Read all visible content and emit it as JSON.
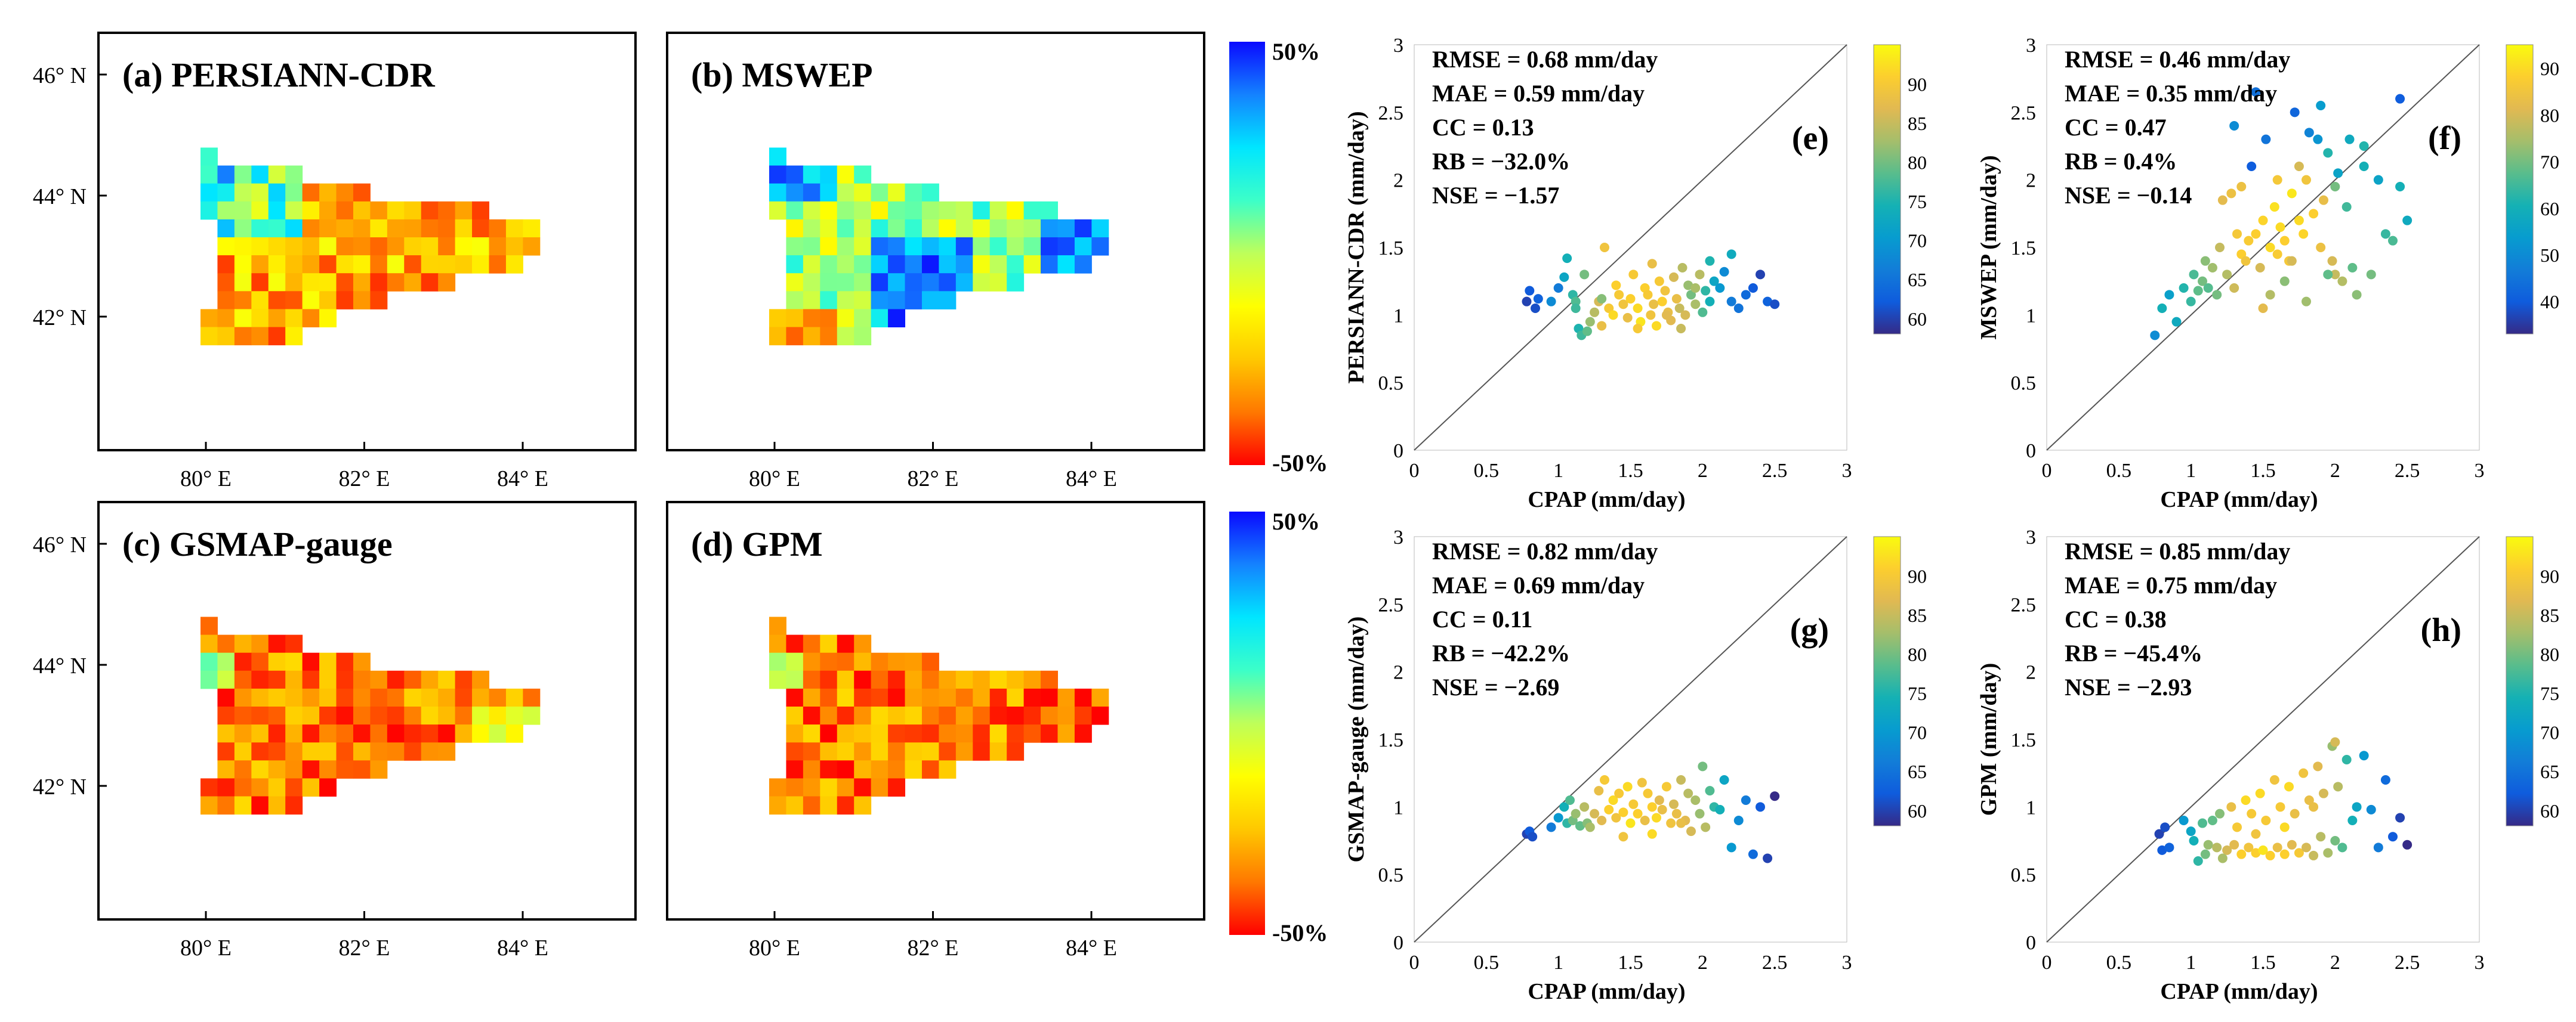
{
  "chart_data": [
    {
      "type": "heatmap",
      "panel": "a",
      "title": "(a) PERSIANN-CDR",
      "x_ticks": [
        "80° E",
        "82° E",
        "84° E"
      ],
      "y_ticks": [
        "46° N",
        "44° N",
        "42° N"
      ],
      "grid": [
        [
          "b00...........",
          "b10...........",
          "b20u0u5r5t5...",
          "b15u5u0r5r0r0r5r5......",
          "v2v2v2v2v2r5u0u0r5r0r0r5...",
          "...u5u5u5v0v0u5s2s0r5r0r0s0s0",
          "...s2s2s5s5s2s2s0r2r0r0r5s5t0",
          "...s2s5s5s5s2s2s0r0s0r5s0..",
          "...t0s5s2s5s0s0r0r0s0....",
          "...s5t0s5r5r0s0r2r0.......",
          "s0s0s2s0s2r0r5r2........",
          "r0r0r0r0r5r0............"
        ]
      ],
      "colorbar": {
        "max_label": "50%",
        "min_label": "-50%"
      }
    },
    {
      "type": "heatmap",
      "panel": "b",
      "title": "(b) MSWEP",
      "x_ticks": [
        "80° E",
        "82° E",
        "84° E"
      ],
      "y_ticks": [
        "46° N",
        "44° N",
        "42° N"
      ]
    },
    {
      "type": "heatmap",
      "panel": "c",
      "title": "(c) GSMAP-gauge",
      "x_ticks": [
        "80° E",
        "82° E",
        "84° E"
      ],
      "y_ticks": [
        "46° N",
        "44° N",
        "42° N"
      ]
    },
    {
      "type": "heatmap",
      "panel": "d",
      "title": "(d) GPM",
      "x_ticks": [
        "80° E",
        "82° E",
        "84° E"
      ],
      "y_ticks": [
        "46° N",
        "44° N",
        "42° N"
      ],
      "colorbar": {
        "max_label": "50%",
        "min_label": "-50%"
      }
    },
    {
      "type": "scatter",
      "panel": "e",
      "label": "(e)",
      "xlabel": "CPAP (mm/day)",
      "ylabel": "PERSIANN-CDR (mm/day)",
      "xlim": [
        0,
        3
      ],
      "ylim": [
        0,
        3
      ],
      "x_ticks": [
        "0",
        "0.5",
        "1",
        "1.5",
        "2",
        "2.5",
        "3"
      ],
      "y_ticks": [
        "0",
        "0.5",
        "1",
        "1.5",
        "2",
        "2.5",
        "3"
      ],
      "stats": [
        "RMSE = 0.68 mm/day",
        "MAE = 0.59 mm/day",
        "CC = 0.13",
        "RB = −32.0%",
        "NSE = −1.57"
      ],
      "colorbar": {
        "ticks": [
          "60",
          "65",
          "70",
          "75",
          "80",
          "85",
          "90"
        ],
        "range": [
          58,
          95
        ]
      },
      "x": [
        0.78,
        0.8,
        0.84,
        0.86,
        0.95,
        1.0,
        1.04,
        1.06,
        1.1,
        1.12,
        1.14,
        1.16,
        1.18,
        1.22,
        1.25,
        1.28,
        1.3,
        1.32,
        1.35,
        1.38,
        1.4,
        1.42,
        1.45,
        1.48,
        1.5,
        1.52,
        1.55,
        1.57,
        1.6,
        1.62,
        1.64,
        1.66,
        1.68,
        1.7,
        1.72,
        1.74,
        1.76,
        1.78,
        1.8,
        1.82,
        1.84,
        1.86,
        1.88,
        1.9,
        1.92,
        1.95,
        1.98,
        2.0,
        2.02,
        2.05,
        2.08,
        2.12,
        2.15,
        2.2,
        2.25,
        2.3,
        2.35,
        2.4,
        2.45,
        2.5,
        1.12,
        1.2,
        1.3,
        1.55,
        1.65,
        1.75,
        1.85,
        1.95,
        2.05,
        2.2
      ],
      "y": [
        1.1,
        1.18,
        1.05,
        1.12,
        1.1,
        1.2,
        1.28,
        1.42,
        1.15,
        1.1,
        0.9,
        0.85,
        1.3,
        0.95,
        1.02,
        1.1,
        0.92,
        1.5,
        1.05,
        1.0,
        1.22,
        1.15,
        1.08,
        0.98,
        1.12,
        1.3,
        1.05,
        0.95,
        1.2,
        1.15,
        1.0,
        1.08,
        0.92,
        1.25,
        1.1,
        1.18,
        1.02,
        0.96,
        1.28,
        1.12,
        1.05,
        1.35,
        1.0,
        1.22,
        1.15,
        1.08,
        1.3,
        1.02,
        1.18,
        1.1,
        1.25,
        1.2,
        1.32,
        1.1,
        1.05,
        1.15,
        1.2,
        1.3,
        1.1,
        1.08,
        1.05,
        0.88,
        1.12,
        0.9,
        1.38,
        1.0,
        0.9,
        1.2,
        1.4,
        1.45
      ],
      "c": [
        60,
        62,
        61,
        63,
        68,
        66,
        72,
        74,
        76,
        78,
        75,
        77,
        80,
        82,
        84,
        86,
        88,
        89,
        90,
        92,
        91,
        90,
        89,
        88,
        91,
        90,
        92,
        93,
        91,
        90,
        89,
        88,
        92,
        90,
        91,
        89,
        88,
        87,
        86,
        88,
        85,
        84,
        86,
        82,
        80,
        83,
        84,
        78,
        76,
        74,
        72,
        70,
        68,
        66,
        65,
        64,
        62,
        60,
        63,
        61,
        77,
        79,
        81,
        90,
        88,
        87,
        85,
        83,
        75,
        73
      ]
    },
    {
      "type": "scatter",
      "panel": "f",
      "label": "(f)",
      "xlabel": "CPAP (mm/day)",
      "ylabel": "MSWEP (mm/day)",
      "xlim": [
        0,
        3
      ],
      "ylim": [
        0,
        3
      ],
      "x_ticks": [
        "0",
        "0.5",
        "1",
        "1.5",
        "2",
        "2.5",
        "3"
      ],
      "y_ticks": [
        "0",
        "0.5",
        "1",
        "1.5",
        "2",
        "2.5",
        "3"
      ],
      "stats": [
        "RMSE = 0.46 mm/day",
        "MAE = 0.35 mm/day",
        "CC = 0.47",
        "RB = 0.4%",
        "NSE = −0.14"
      ],
      "colorbar": {
        "ticks": [
          "40",
          "50",
          "60",
          "70",
          "80",
          "90"
        ],
        "range": [
          33,
          95
        ]
      },
      "x": [
        0.75,
        0.8,
        0.85,
        0.9,
        0.95,
        1.0,
        1.02,
        1.05,
        1.08,
        1.1,
        1.12,
        1.15,
        1.18,
        1.2,
        1.22,
        1.25,
        1.28,
        1.3,
        1.32,
        1.35,
        1.38,
        1.4,
        1.42,
        1.45,
        1.48,
        1.5,
        1.52,
        1.55,
        1.58,
        1.6,
        1.62,
        1.65,
        1.68,
        1.7,
        1.72,
        1.75,
        1.78,
        1.8,
        1.82,
        1.85,
        1.88,
        1.9,
        1.92,
        1.95,
        1.98,
        2.0,
        2.02,
        2.05,
        2.08,
        2.1,
        2.12,
        2.15,
        2.2,
        2.25,
        2.3,
        2.35,
        2.4,
        2.45,
        2.5,
        1.3,
        1.45,
        1.6,
        1.75,
        1.9,
        2.0,
        1.55,
        1.65,
        1.8,
        1.95,
        2.2,
        2.45,
        1.35,
        1.5,
        1.7
      ],
      "y": [
        0.85,
        1.05,
        1.15,
        0.95,
        1.2,
        1.1,
        1.3,
        1.18,
        1.25,
        1.4,
        1.2,
        1.35,
        1.15,
        1.5,
        1.85,
        1.3,
        1.9,
        1.2,
        1.6,
        1.45,
        1.4,
        1.55,
        2.1,
        1.6,
        1.35,
        1.7,
        2.3,
        1.5,
        1.8,
        1.45,
        1.65,
        1.55,
        1.4,
        1.9,
        2.5,
        1.7,
        1.6,
        2.0,
        2.35,
        1.75,
        2.3,
        1.5,
        1.85,
        2.2,
        1.4,
        1.95,
        2.05,
        1.25,
        1.8,
        2.3,
        1.35,
        1.15,
        2.1,
        1.3,
        2.0,
        1.6,
        1.55,
        2.6,
        1.7,
        2.4,
        2.65,
        2.0,
        2.1,
        2.55,
        1.3,
        1.15,
        1.25,
        1.1,
        1.3,
        2.25,
        1.95,
        1.95,
        1.05,
        1.4
      ],
      "c": [
        50,
        60,
        55,
        58,
        62,
        64,
        66,
        68,
        70,
        72,
        67,
        74,
        70,
        78,
        82,
        76,
        84,
        79,
        86,
        88,
        85,
        87,
        40,
        88,
        80,
        89,
        45,
        90,
        91,
        87,
        90,
        88,
        86,
        92,
        42,
        90,
        89,
        85,
        48,
        88,
        52,
        84,
        83,
        62,
        80,
        70,
        56,
        76,
        65,
        58,
        68,
        72,
        60,
        70,
        56,
        64,
        66,
        40,
        58,
        50,
        44,
        86,
        80,
        54,
        78,
        76,
        72,
        74,
        68,
        62,
        60,
        84,
        82,
        80
      ]
    },
    {
      "type": "scatter",
      "panel": "g",
      "label": "(g)",
      "xlabel": "CPAP (mm/day)",
      "ylabel": "GSMAP-gauge (mm/day)",
      "xlim": [
        0,
        3
      ],
      "ylim": [
        0,
        3
      ],
      "x_ticks": [
        "0",
        "0.5",
        "1",
        "1.5",
        "2",
        "2.5",
        "3"
      ],
      "y_ticks": [
        "0",
        "0.5",
        "1",
        "1.5",
        "2",
        "2.5",
        "3"
      ],
      "stats": [
        "RMSE = 0.82 mm/day",
        "MAE = 0.69 mm/day",
        "CC = 0.11",
        "RB = −42.2%",
        "NSE = −2.69"
      ],
      "colorbar": {
        "ticks": [
          "60",
          "65",
          "70",
          "75",
          "80",
          "85",
          "90"
        ],
        "range": [
          58,
          95
        ]
      },
      "x": [
        0.78,
        0.8,
        0.82,
        0.95,
        1.0,
        1.04,
        1.06,
        1.08,
        1.1,
        1.12,
        1.15,
        1.18,
        1.2,
        1.25,
        1.28,
        1.3,
        1.32,
        1.35,
        1.38,
        1.4,
        1.42,
        1.45,
        1.48,
        1.5,
        1.52,
        1.55,
        1.58,
        1.6,
        1.62,
        1.65,
        1.68,
        1.7,
        1.72,
        1.75,
        1.78,
        1.8,
        1.82,
        1.85,
        1.88,
        1.9,
        1.92,
        1.95,
        1.98,
        2.0,
        2.02,
        2.05,
        2.08,
        2.12,
        2.15,
        2.2,
        2.25,
        2.3,
        2.35,
        2.4,
        2.45,
        2.5,
        1.22,
        1.45,
        1.65,
        1.85
      ],
      "y": [
        0.8,
        0.82,
        0.78,
        0.85,
        0.92,
        1.0,
        0.88,
        1.05,
        0.9,
        0.95,
        0.86,
        1.0,
        0.88,
        0.95,
        1.12,
        0.9,
        1.2,
        0.98,
        1.05,
        0.92,
        1.1,
        0.96,
        1.15,
        0.88,
        1.02,
        0.95,
        1.18,
        0.9,
        1.1,
        1.0,
        0.92,
        1.05,
        0.98,
        1.15,
        0.88,
        1.02,
        0.95,
        1.2,
        0.9,
        1.1,
        0.82,
        1.05,
        0.95,
        1.3,
        0.85,
        1.12,
        1.0,
        0.98,
        1.2,
        0.7,
        0.9,
        1.05,
        0.65,
        1.0,
        0.62,
        1.08,
        0.85,
        0.78,
        0.8,
        0.88
      ],
      "c": [
        60,
        62,
        61,
        66,
        70,
        74,
        76,
        78,
        80,
        82,
        79,
        84,
        81,
        86,
        88,
        87,
        90,
        91,
        92,
        89,
        90,
        91,
        92,
        93,
        90,
        91,
        89,
        88,
        90,
        91,
        92,
        87,
        88,
        90,
        89,
        86,
        88,
        85,
        87,
        84,
        86,
        83,
        82,
        80,
        84,
        78,
        76,
        74,
        72,
        70,
        68,
        66,
        64,
        62,
        60,
        58,
        83,
        89,
        92,
        88
      ]
    },
    {
      "type": "scatter",
      "panel": "h",
      "label": "(h)",
      "xlabel": "CPAP (mm/day)",
      "ylabel": "GPM (mm/day)",
      "xlim": [
        0,
        3
      ],
      "ylim": [
        0,
        3
      ],
      "x_ticks": [
        "0",
        "0.5",
        "1",
        "1.5",
        "2",
        "2.5",
        "3"
      ],
      "y_ticks": [
        "0",
        "0.5",
        "1",
        "1.5",
        "2",
        "2.5",
        "3"
      ],
      "stats": [
        "RMSE = 0.85 mm/day",
        "MAE = 0.75 mm/day",
        "CC = 0.38",
        "RB = −45.4%",
        "NSE = −2.93"
      ],
      "colorbar": {
        "ticks": [
          "60",
          "65",
          "70",
          "75",
          "80",
          "85",
          "90"
        ],
        "range": [
          58,
          95
        ]
      },
      "x": [
        0.78,
        0.8,
        0.82,
        0.85,
        0.95,
        1.0,
        1.02,
        1.05,
        1.08,
        1.1,
        1.12,
        1.15,
        1.18,
        1.2,
        1.25,
        1.28,
        1.3,
        1.32,
        1.35,
        1.38,
        1.4,
        1.42,
        1.45,
        1.48,
        1.5,
        1.52,
        1.55,
        1.58,
        1.6,
        1.62,
        1.65,
        1.68,
        1.7,
        1.72,
        1.75,
        1.78,
        1.8,
        1.82,
        1.85,
        1.88,
        1.9,
        1.92,
        1.95,
        1.98,
        2.0,
        2.02,
        2.05,
        2.08,
        2.12,
        2.15,
        2.2,
        2.25,
        2.3,
        2.35,
        2.4,
        2.45,
        2.5,
        1.22,
        1.45,
        1.65,
        1.85,
        2.0
      ],
      "y": [
        0.8,
        0.68,
        0.85,
        0.7,
        0.9,
        0.82,
        0.75,
        0.6,
        0.88,
        0.65,
        0.72,
        0.9,
        0.7,
        0.95,
        0.68,
        1.0,
        0.72,
        0.85,
        0.65,
        1.05,
        0.7,
        0.95,
        0.66,
        1.1,
        0.68,
        0.9,
        0.64,
        1.2,
        0.7,
        1.0,
        0.65,
        1.15,
        0.72,
        0.95,
        0.66,
        1.25,
        0.7,
        1.05,
        0.64,
        1.3,
        0.78,
        1.1,
        0.66,
        1.45,
        0.75,
        1.15,
        0.7,
        1.35,
        0.9,
        1.0,
        1.38,
        0.98,
        0.7,
        1.2,
        0.78,
        0.92,
        0.72,
        0.62,
        0.8,
        0.85,
        1.0,
        1.48
      ],
      "c": [
        60,
        62,
        61,
        63,
        70,
        72,
        74,
        76,
        78,
        80,
        82,
        79,
        84,
        81,
        86,
        88,
        87,
        90,
        91,
        92,
        89,
        90,
        91,
        92,
        93,
        90,
        91,
        89,
        88,
        90,
        91,
        92,
        87,
        88,
        90,
        89,
        86,
        88,
        85,
        87,
        84,
        86,
        83,
        82,
        80,
        84,
        78,
        76,
        74,
        72,
        70,
        68,
        66,
        64,
        62,
        60,
        58,
        83,
        89,
        92,
        88,
        86
      ]
    }
  ]
}
